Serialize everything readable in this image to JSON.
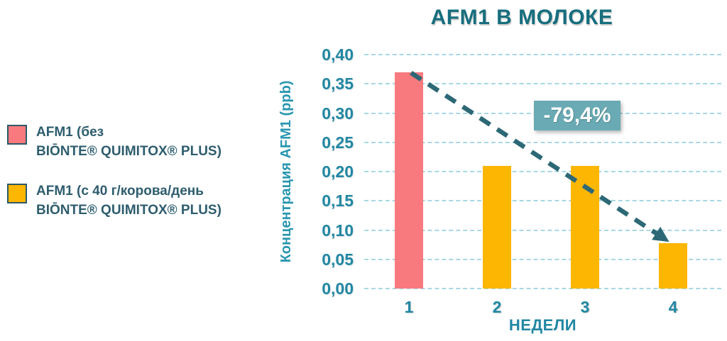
{
  "legend": {
    "items": [
      {
        "lines": [
          "AFM1 (без",
          "BIŌNTE® QUIMITOX® PLUS)"
        ],
        "color": "#F87A7E"
      },
      {
        "lines": [
          "AFM1 (с 40 г/корова/день",
          "BIŌNTE® QUIMITOX® PLUS)"
        ],
        "color": "#FDB602"
      }
    ]
  },
  "chart_data": {
    "type": "bar",
    "title": "AFM1 В МОЛОКЕ",
    "xlabel": "НЕДЕЛИ",
    "ylabel": "Концентрация AFM1 (ppb)",
    "categories": [
      "1",
      "2",
      "3",
      "4"
    ],
    "values": [
      0.37,
      0.21,
      0.21,
      0.077
    ],
    "bar_colors": [
      "#F87A7E",
      "#FDB602",
      "#FDB602",
      "#FDB602"
    ],
    "ylim": [
      0,
      0.4
    ],
    "yticks": [
      0,
      0.05,
      0.1,
      0.15,
      0.2,
      0.25,
      0.3,
      0.35,
      0.4
    ],
    "ytick_labels": [
      "0,00",
      "0,05",
      "0,10",
      "0,15",
      "0,20",
      "0,25",
      "0,30",
      "0,35",
      "0,40"
    ],
    "grid": true,
    "gridline_style": "dashed",
    "legend_position": "left",
    "annotation": {
      "text": "-79,4%",
      "from_category": "1",
      "to_category": "4",
      "style": "dashed-arrow"
    }
  },
  "colors": {
    "title": "#176E7E",
    "axis_ticks": "#2187A3",
    "axis_label": "#2996B0",
    "legend_text": "#2E5D6E",
    "gridline": "#A8D8E3",
    "arrow": "#2C6876",
    "badge_bg": "#69AAB4",
    "badge_text": "#FFFFFF"
  }
}
